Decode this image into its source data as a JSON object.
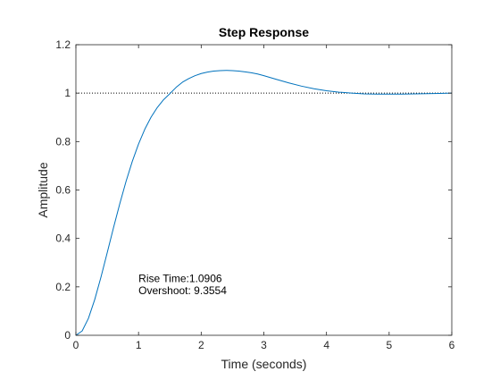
{
  "chart_data": {
    "type": "line",
    "title": "Step Response",
    "xlabel": "Time (seconds)",
    "ylabel": "Amplitude",
    "xlim": [
      0,
      6
    ],
    "ylim": [
      0,
      1.2
    ],
    "xticks": [
      0,
      1,
      2,
      3,
      4,
      5,
      6
    ],
    "yticks": [
      0,
      0.2,
      0.4,
      0.6,
      0.8,
      1,
      1.2
    ],
    "xtick_labels": [
      "0",
      "1",
      "2",
      "3",
      "4",
      "5",
      "6"
    ],
    "ytick_labels": [
      "0",
      "0.2",
      "0.4",
      "0.6",
      "0.8",
      "1",
      "1.2"
    ],
    "grid": false,
    "reference_line": {
      "y": 1,
      "style": "dotted",
      "color": "#000000"
    },
    "series": [
      {
        "color": "#0072bd",
        "x": [
          0,
          0.1,
          0.2,
          0.3,
          0.4,
          0.5,
          0.6,
          0.7,
          0.8,
          0.9,
          1.0,
          1.1,
          1.2,
          1.3,
          1.4,
          1.5,
          1.6,
          1.7,
          1.8,
          1.9,
          2.0,
          2.1,
          2.2,
          2.3,
          2.4,
          2.5,
          2.6,
          2.7,
          2.8,
          2.9,
          3.0,
          3.2,
          3.4,
          3.6,
          3.8,
          4.0,
          4.2,
          4.4,
          4.6,
          4.8,
          5.0,
          5.2,
          5.4,
          5.6,
          5.8,
          6.0
        ],
        "y": [
          0,
          0.018,
          0.07,
          0.147,
          0.24,
          0.341,
          0.444,
          0.543,
          0.635,
          0.718,
          0.79,
          0.851,
          0.901,
          0.941,
          0.973,
          0.998,
          1.024,
          1.045,
          1.06,
          1.072,
          1.081,
          1.087,
          1.091,
          1.093,
          1.094,
          1.093,
          1.091,
          1.088,
          1.084,
          1.079,
          1.072,
          1.057,
          1.042,
          1.029,
          1.018,
          1.01,
          1.004,
          1.0,
          0.997,
          0.996,
          0.996,
          0.996,
          0.997,
          0.998,
          0.999,
          1.0
        ]
      }
    ],
    "annotations": [
      {
        "text": "Rise Time:1.0906",
        "x": 1.0,
        "y": 0.235
      },
      {
        "text": "Overshoot: 9.3554",
        "x": 1.0,
        "y": 0.185
      }
    ]
  }
}
